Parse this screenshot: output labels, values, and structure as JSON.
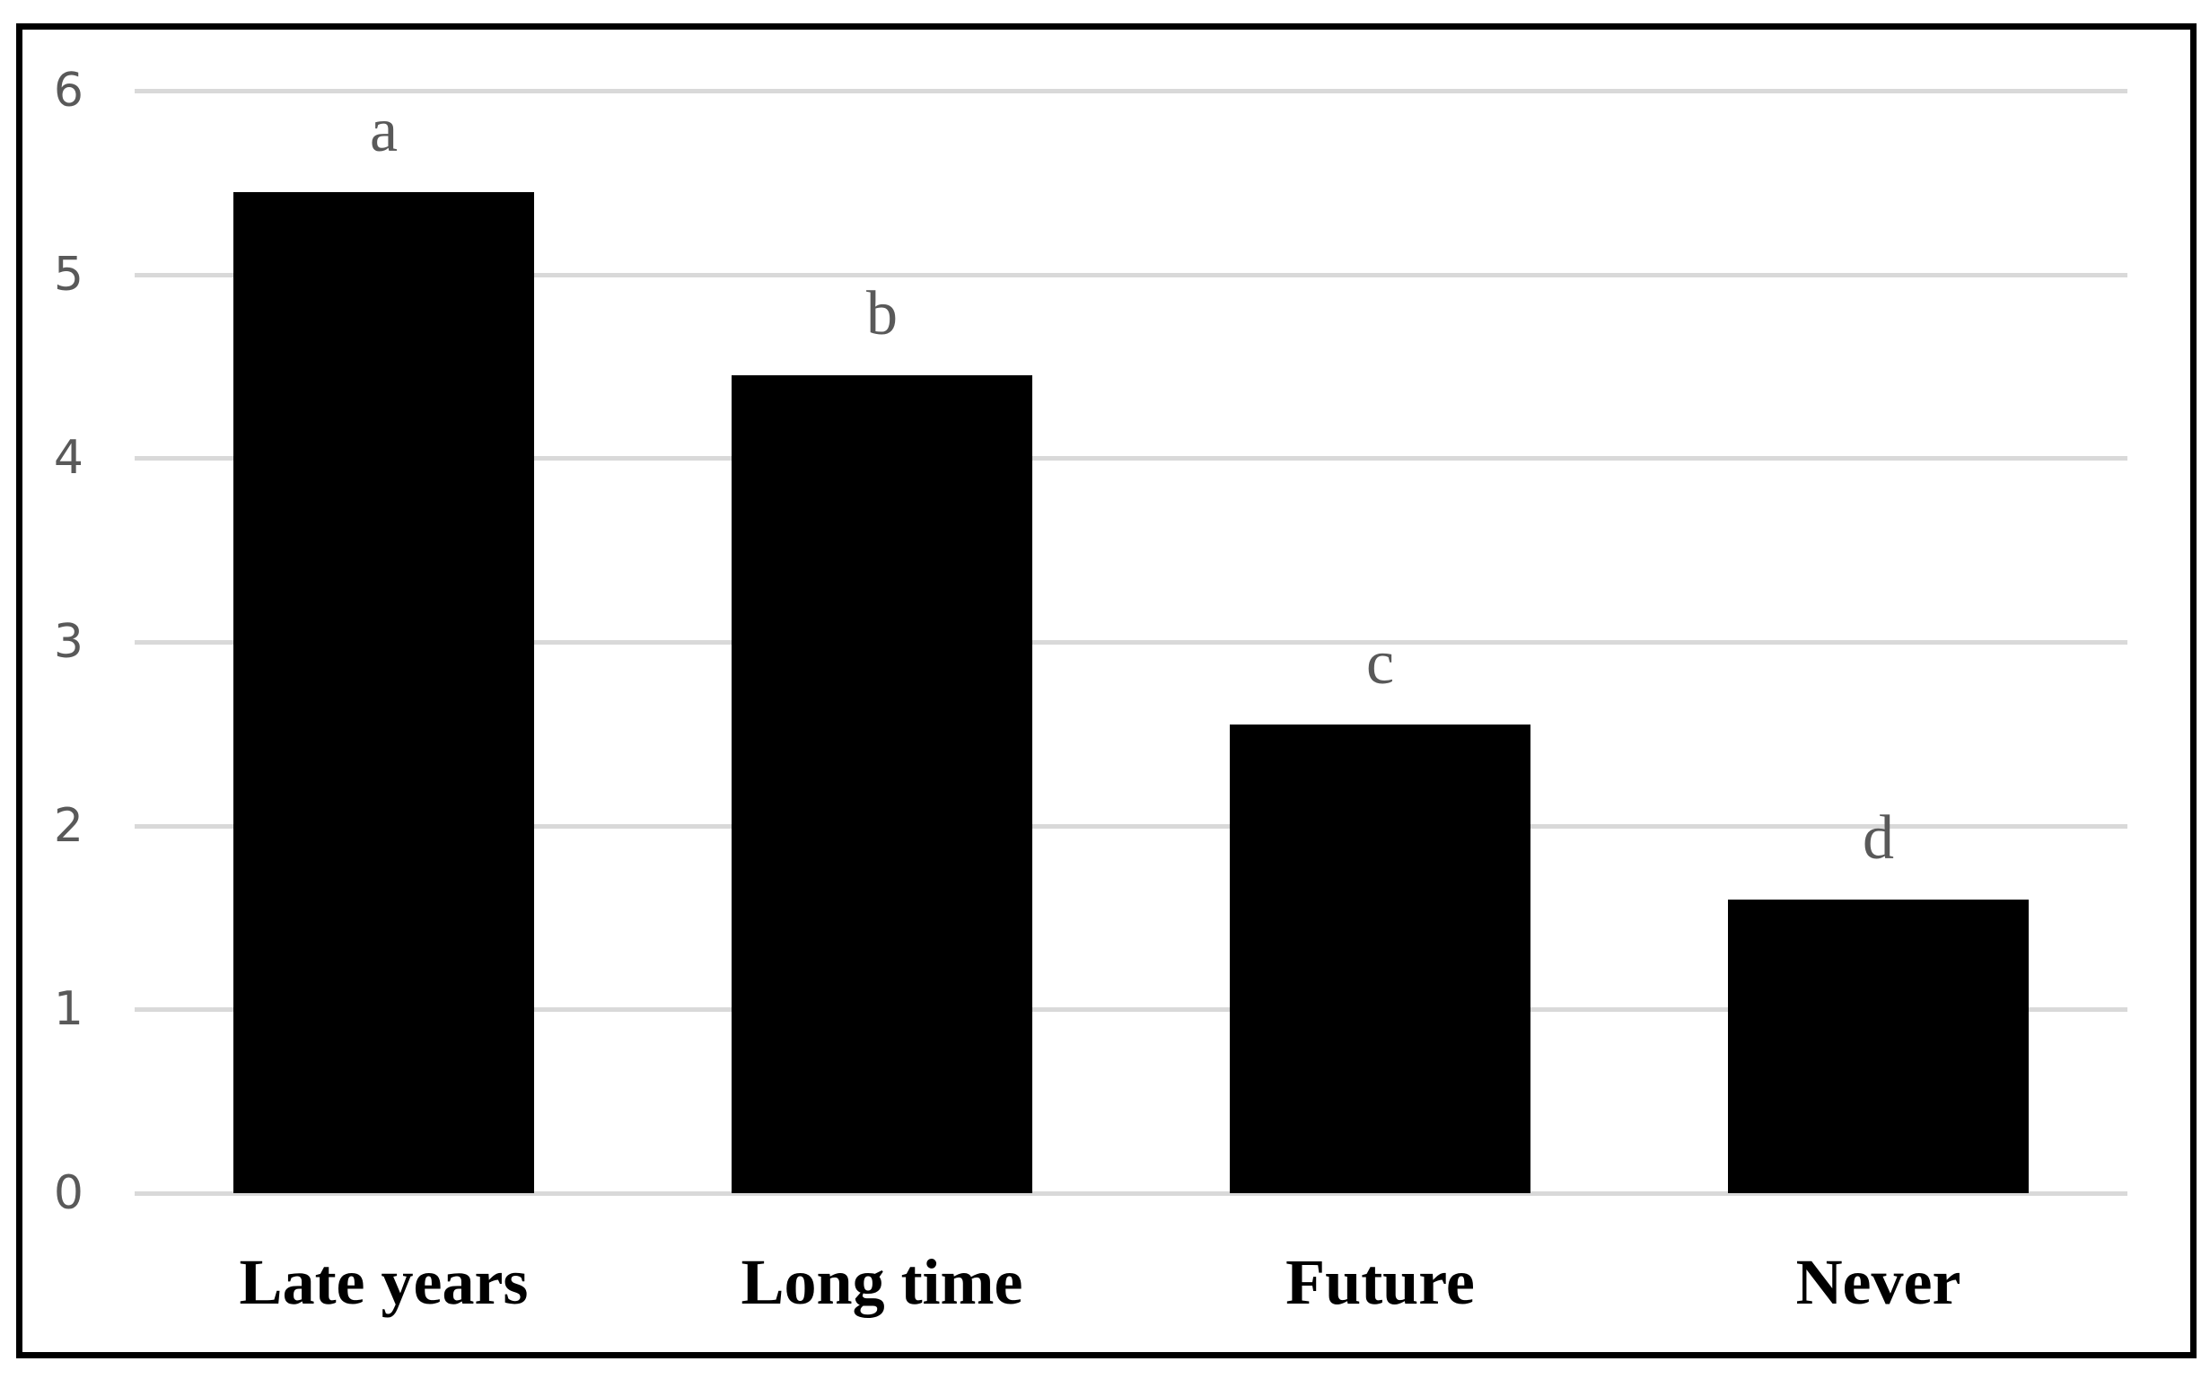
{
  "chart_data": {
    "type": "bar",
    "title": "",
    "xlabel": "",
    "ylabel": "",
    "categories": [
      "Late years",
      "Long time",
      "Future",
      "Never"
    ],
    "values": [
      5.45,
      4.45,
      2.55,
      1.6
    ],
    "bar_labels": [
      "a",
      "b",
      "c",
      "d"
    ],
    "ylim": [
      0,
      6
    ],
    "yticks": [
      0,
      1,
      2,
      3,
      4,
      5,
      6
    ],
    "grid": true,
    "legend": "none",
    "colors": {
      "bar": "#000000",
      "gridline": "#d9d9d9",
      "tick_text": "#595959",
      "bar_letter": "#595959",
      "category_text": "#000000",
      "frame_border": "#000000",
      "background": "#ffffff"
    }
  }
}
